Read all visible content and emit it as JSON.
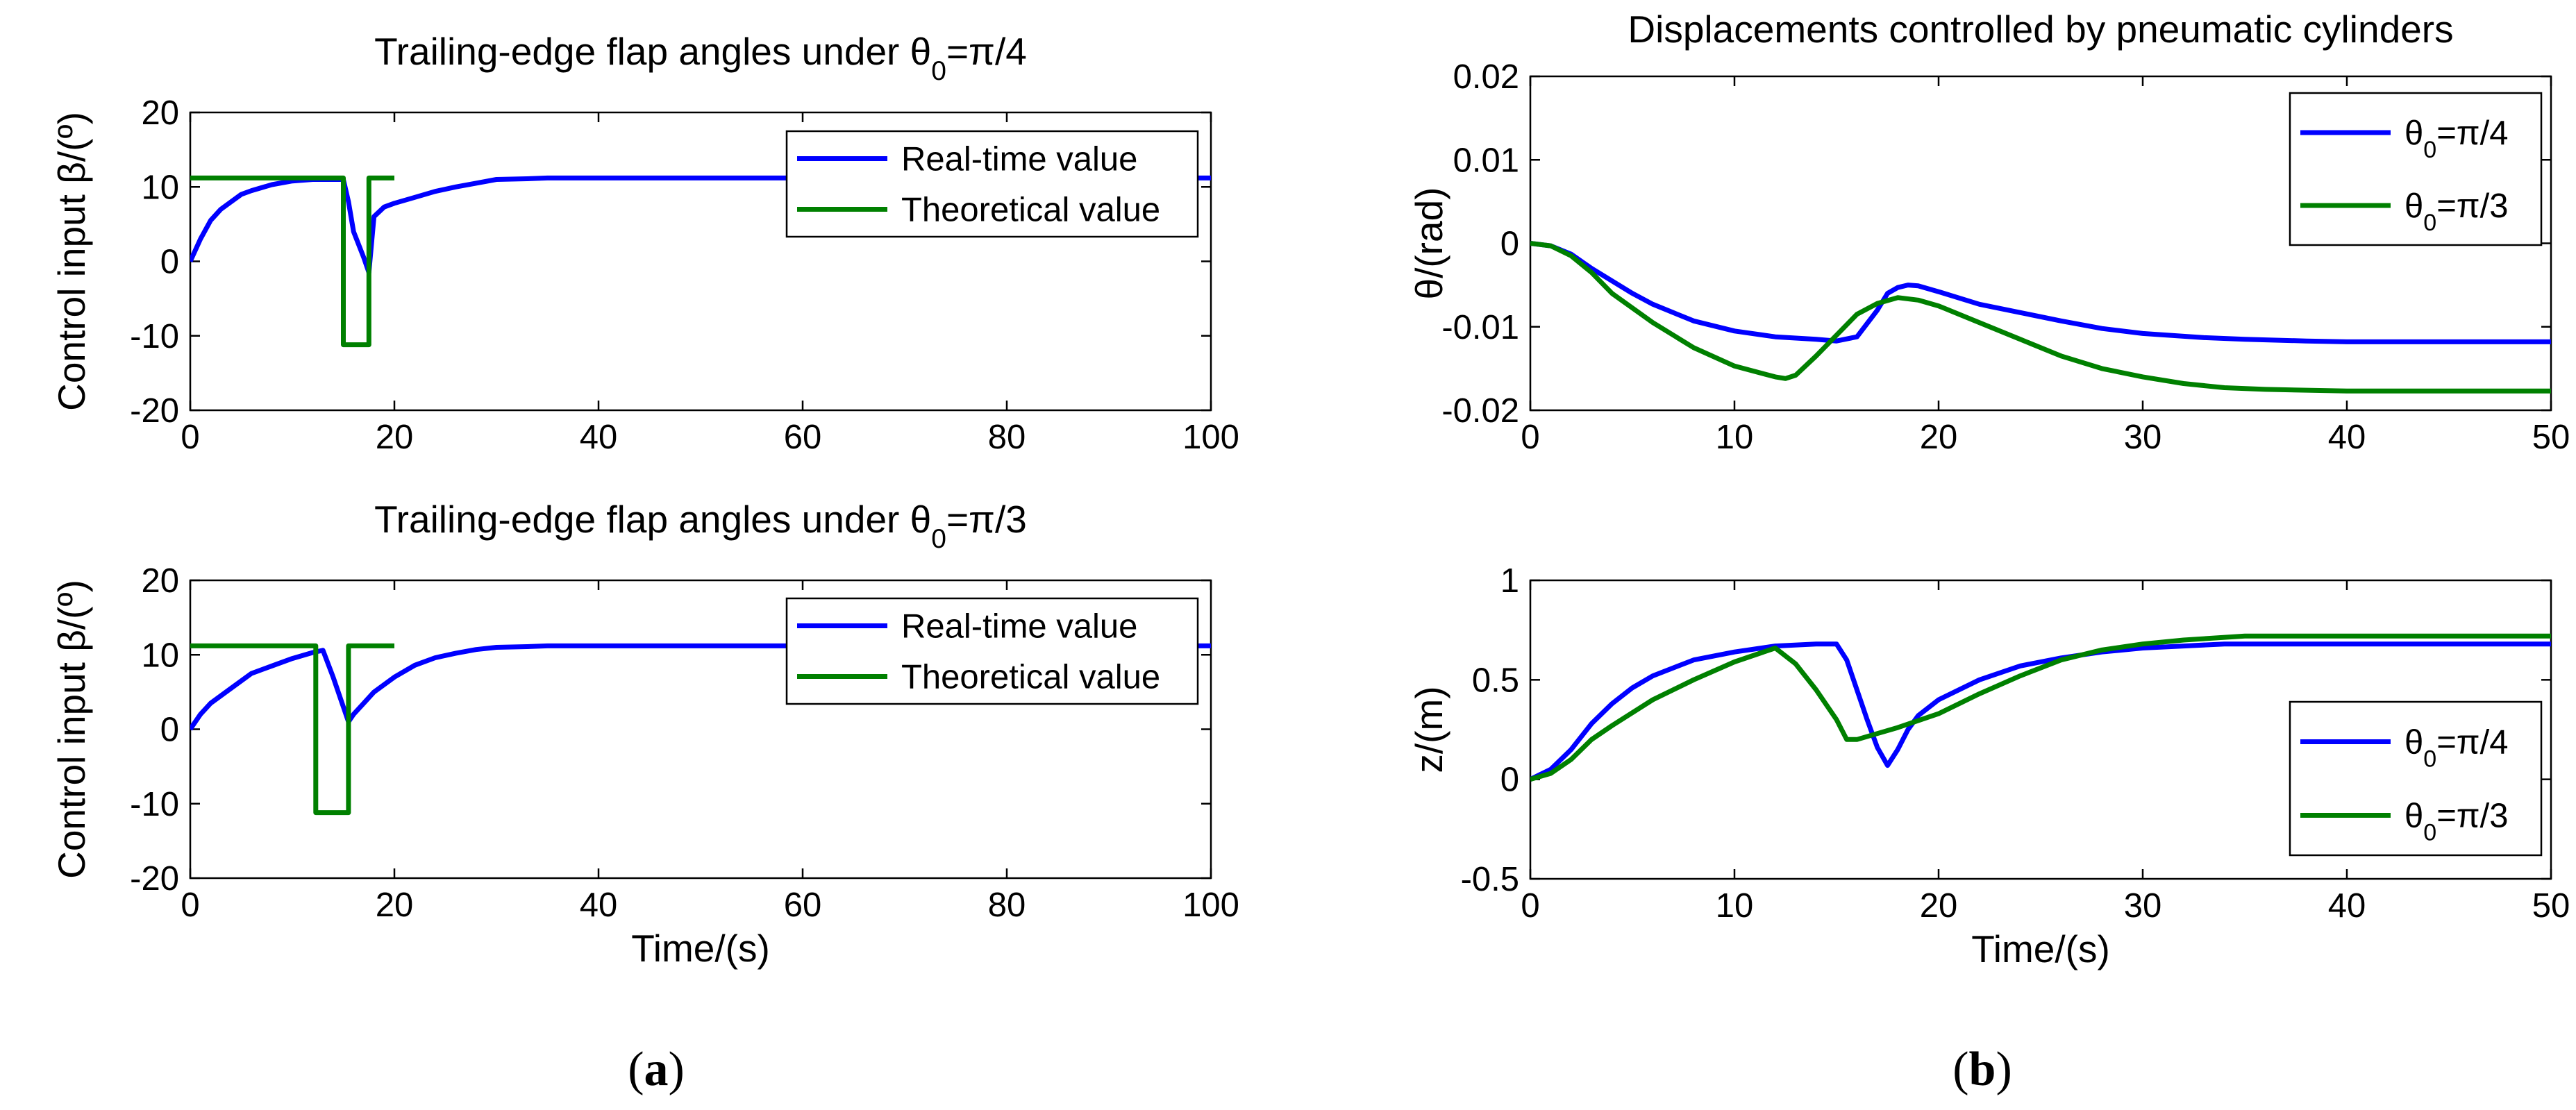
{
  "chart_data": [
    {
      "type": "line",
      "title": "Trailing-edge flap angles under θ0=π/4",
      "title_parts": [
        "Trailing-edge flap angles under ",
        "θ",
        "0",
        "=π/4"
      ],
      "ylabel": "Control input β/(º)",
      "ylabel_parts": [
        "Control input ",
        "β",
        "/(º)"
      ],
      "xlabel": "",
      "xlim": [
        0,
        100
      ],
      "ylim": [
        -20,
        20
      ],
      "xticks": [
        0,
        20,
        40,
        60,
        80,
        100
      ],
      "yticks": [
        -20,
        -10,
        0,
        10,
        20
      ],
      "legend_position": "top-right",
      "series": [
        {
          "name": "Real-time value",
          "color": "#0000ff",
          "x": [
            0,
            1,
            2,
            3,
            4,
            5,
            6,
            8,
            10,
            12,
            14,
            15,
            15.5,
            16,
            17,
            17.5,
            18,
            19,
            20,
            22,
            24,
            26,
            28,
            30,
            33,
            35,
            40,
            100
          ],
          "y": [
            0,
            3,
            5.5,
            7,
            8,
            9,
            9.5,
            10.3,
            10.8,
            11,
            11,
            11,
            8,
            4,
            0.5,
            -1.5,
            6,
            7.3,
            7.8,
            8.6,
            9.4,
            10,
            10.5,
            11,
            11.1,
            11.2,
            11.2,
            11.2
          ]
        },
        {
          "name": "Theoretical value",
          "color": "#008000",
          "x": [
            0,
            15,
            15,
            17.5,
            17.5,
            20
          ],
          "y": [
            11.2,
            11.2,
            -11.2,
            -11.2,
            11.2,
            11.2
          ]
        }
      ]
    },
    {
      "type": "line",
      "title": "Trailing-edge flap angles under θ0=π/3",
      "title_parts": [
        "Trailing-edge flap angles under ",
        "θ",
        "0",
        "=π/3"
      ],
      "ylabel": "Control input β/(º)",
      "ylabel_parts": [
        "Control input ",
        "β",
        "/(º)"
      ],
      "xlabel": "Time/(s)",
      "xlim": [
        0,
        100
      ],
      "ylim": [
        -20,
        20
      ],
      "xticks": [
        0,
        20,
        40,
        60,
        80,
        100
      ],
      "yticks": [
        -20,
        -10,
        0,
        10,
        20
      ],
      "legend_position": "top-right",
      "series": [
        {
          "name": "Real-time value",
          "color": "#0000ff",
          "x": [
            0,
            1,
            2,
            4,
            6,
            8,
            10,
            12,
            13,
            14,
            15,
            15.5,
            16,
            17,
            18,
            20,
            22,
            24,
            26,
            28,
            30,
            33,
            35,
            40,
            100
          ],
          "y": [
            0,
            2,
            3.5,
            5.5,
            7.5,
            8.5,
            9.5,
            10.3,
            10.6,
            7,
            3,
            1,
            2,
            3.5,
            5,
            7,
            8.6,
            9.6,
            10.2,
            10.7,
            11,
            11.1,
            11.2,
            11.2,
            11.2
          ]
        },
        {
          "name": "Theoretical value",
          "color": "#008000",
          "x": [
            0,
            12.3,
            12.3,
            15.5,
            15.5,
            20
          ],
          "y": [
            11.2,
            11.2,
            -11.2,
            -11.2,
            11.2,
            11.2
          ]
        }
      ]
    },
    {
      "type": "line",
      "title": "Displacements controlled by pneumatic cylinders",
      "ylabel": "θ/(rad)",
      "xlabel": "",
      "xlim": [
        0,
        50
      ],
      "ylim": [
        -0.02,
        0.02
      ],
      "xticks": [
        0,
        10,
        20,
        30,
        40,
        50
      ],
      "yticks": [
        -0.02,
        -0.01,
        0,
        0.01,
        0.02
      ],
      "ytick_labels": [
        "-0.02",
        "-0.01",
        "0",
        "0.01",
        "0.02"
      ],
      "legend_position": "top-right",
      "series": [
        {
          "name": "θ0=π/4",
          "color": "#0000ff",
          "x": [
            0,
            1,
            2,
            3,
            4,
            5,
            6,
            8,
            10,
            12,
            14,
            15,
            16,
            17,
            17.5,
            18,
            18.5,
            19,
            20,
            22,
            24,
            26,
            28,
            30,
            33,
            35,
            38,
            40,
            50
          ],
          "y": [
            0,
            -0.0003,
            -0.0013,
            -0.003,
            -0.0045,
            -0.006,
            -0.0073,
            -0.0093,
            -0.0105,
            -0.0112,
            -0.0115,
            -0.0117,
            -0.0112,
            -0.008,
            -0.006,
            -0.0053,
            -0.005,
            -0.0051,
            -0.0058,
            -0.0073,
            -0.0083,
            -0.0093,
            -0.0102,
            -0.0108,
            -0.0113,
            -0.0115,
            -0.0117,
            -0.0118,
            -0.0118
          ]
        },
        {
          "name": "θ0=π/3",
          "color": "#008000",
          "x": [
            0,
            1,
            2,
            3,
            4,
            6,
            8,
            10,
            12,
            12.5,
            13,
            14,
            15,
            16,
            17,
            18,
            19,
            20,
            22,
            24,
            26,
            28,
            30,
            32,
            34,
            36,
            40,
            50
          ],
          "y": [
            0,
            -0.0003,
            -0.0015,
            -0.0035,
            -0.006,
            -0.0095,
            -0.0125,
            -0.0147,
            -0.016,
            -0.0162,
            -0.0158,
            -0.0135,
            -0.011,
            -0.0085,
            -0.0072,
            -0.0065,
            -0.0068,
            -0.0075,
            -0.0095,
            -0.0115,
            -0.0135,
            -0.015,
            -0.016,
            -0.0168,
            -0.0173,
            -0.0175,
            -0.0177,
            -0.0177
          ]
        }
      ]
    },
    {
      "type": "line",
      "title": "",
      "ylabel": "z/(m)",
      "xlabel": "Time/(s)",
      "xlim": [
        0,
        50
      ],
      "ylim": [
        -0.5,
        1
      ],
      "xticks": [
        0,
        10,
        20,
        30,
        40,
        50
      ],
      "yticks": [
        -0.5,
        0,
        0.5,
        1
      ],
      "ytick_labels": [
        "-0.5",
        "0",
        "0.5",
        "1"
      ],
      "legend_position": "bottom-right",
      "series": [
        {
          "name": "θ0=π/4",
          "color": "#0000ff",
          "x": [
            0,
            1,
            2,
            3,
            4,
            5,
            6,
            8,
            10,
            12,
            14,
            15,
            15.5,
            16,
            16.5,
            17,
            17.5,
            18,
            18.5,
            19,
            20,
            22,
            24,
            26,
            28,
            30,
            32,
            34,
            40,
            50
          ],
          "y": [
            0,
            0.05,
            0.15,
            0.28,
            0.38,
            0.46,
            0.52,
            0.6,
            0.64,
            0.67,
            0.68,
            0.68,
            0.6,
            0.45,
            0.3,
            0.16,
            0.07,
            0.15,
            0.25,
            0.32,
            0.4,
            0.5,
            0.57,
            0.61,
            0.64,
            0.66,
            0.67,
            0.68,
            0.68,
            0.68
          ]
        },
        {
          "name": "θ0=π/3",
          "color": "#008000",
          "x": [
            0,
            1,
            2,
            3,
            4,
            6,
            8,
            10,
            12,
            13,
            14,
            15,
            15.5,
            16,
            17,
            18,
            20,
            22,
            24,
            26,
            28,
            30,
            32,
            35,
            40,
            50
          ],
          "y": [
            0,
            0.03,
            0.1,
            0.2,
            0.27,
            0.4,
            0.5,
            0.59,
            0.66,
            0.58,
            0.45,
            0.3,
            0.2,
            0.2,
            0.23,
            0.26,
            0.33,
            0.43,
            0.52,
            0.6,
            0.65,
            0.68,
            0.7,
            0.72,
            0.72,
            0.72
          ]
        }
      ]
    }
  ],
  "legend_theta_parts": {
    "pi4": [
      "θ",
      "0",
      "=π/4"
    ],
    "pi3": [
      "θ",
      "0",
      "=π/3"
    ]
  },
  "panel_labels": {
    "a": "a",
    "b": "b",
    "open_paren": "(",
    "close_paren": ")"
  }
}
